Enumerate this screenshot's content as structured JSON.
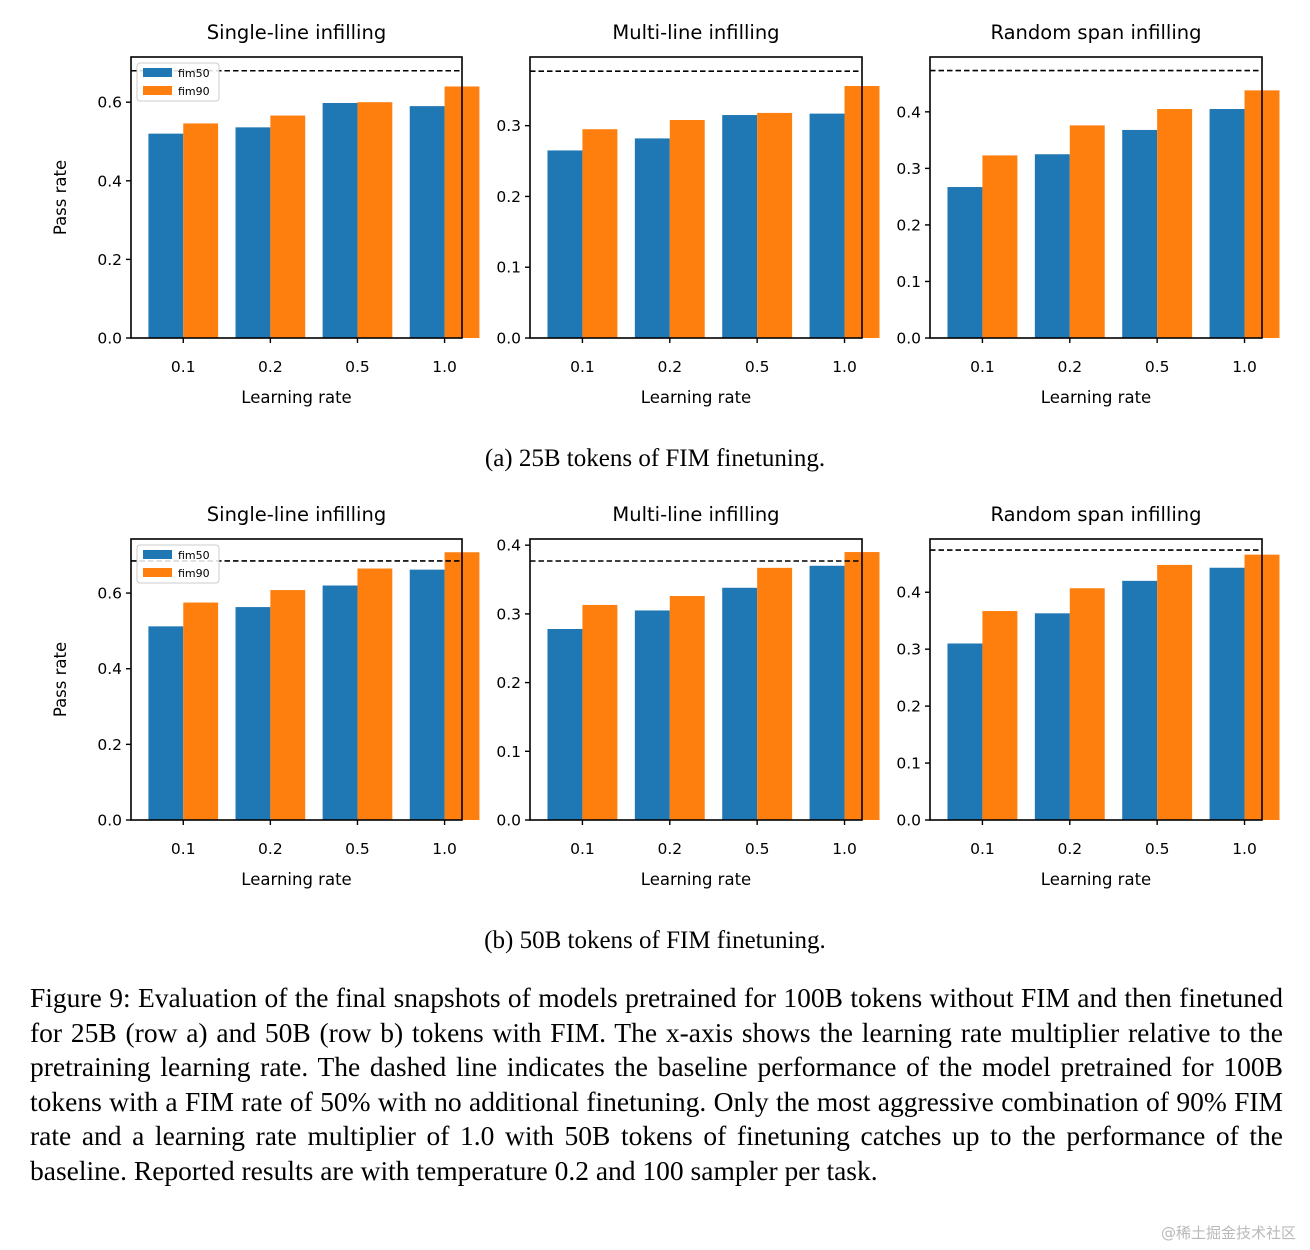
{
  "colors": {
    "fim50": "#1f77b4",
    "fim90": "#ff7f0e",
    "baseline": "#000000"
  },
  "figure": {
    "subcaption_a": "(a) 25B tokens of FIM finetuning.",
    "subcaption_b": "(b) 50B tokens of FIM finetuning.",
    "caption": "Figure 9: Evaluation of the final snapshots of models pretrained for 100B tokens without FIM and then finetuned for 25B (row a) and 50B (row b) tokens with FIM. The x-axis shows the learning rate multiplier relative to the pretraining learning rate. The dashed line indicates the baseline performance of the model pretrained for 100B tokens with a FIM rate of 50% with no additional finetuning. Only the most aggressive combination of 90% FIM rate and a learning rate multiplier of 1.0 with 50B tokens of finetuning catches up to the performance of the baseline. Reported results are with temperature 0.2 and 100 sampler per task.",
    "watermark": "@稀土掘金技术社区"
  },
  "chart_data": [
    {
      "type": "bar",
      "row": "a",
      "title": "Single-line infilling",
      "xlabel": "Learning rate",
      "ylabel": "Pass rate",
      "categories": [
        "0.1",
        "0.2",
        "0.5",
        "1.0"
      ],
      "series": [
        {
          "name": "fim50",
          "values": [
            0.52,
            0.536,
            0.598,
            0.59
          ]
        },
        {
          "name": "fim90",
          "values": [
            0.546,
            0.566,
            0.6,
            0.64
          ]
        }
      ],
      "baseline": 0.68,
      "ylim": [
        0,
        0.715
      ],
      "yticks": [
        0.0,
        0.2,
        0.4,
        0.6
      ],
      "yticklabels": [
        "0.0",
        "0.2",
        "0.4",
        "0.6"
      ],
      "legend": "top-left"
    },
    {
      "type": "bar",
      "row": "a",
      "title": "Multi-line infilling",
      "xlabel": "Learning rate",
      "ylabel": "",
      "categories": [
        "0.1",
        "0.2",
        "0.5",
        "1.0"
      ],
      "series": [
        {
          "name": "fim50",
          "values": [
            0.265,
            0.282,
            0.315,
            0.317
          ]
        },
        {
          "name": "fim90",
          "values": [
            0.295,
            0.308,
            0.318,
            0.356
          ]
        }
      ],
      "baseline": 0.377,
      "ylim": [
        0,
        0.397
      ],
      "yticks": [
        0.0,
        0.1,
        0.2,
        0.3
      ],
      "yticklabels": [
        "0.0",
        "0.1",
        "0.2",
        "0.3"
      ]
    },
    {
      "type": "bar",
      "row": "a",
      "title": "Random span infilling",
      "xlabel": "Learning rate",
      "ylabel": "",
      "categories": [
        "0.1",
        "0.2",
        "0.5",
        "1.0"
      ],
      "series": [
        {
          "name": "fim50",
          "values": [
            0.267,
            0.325,
            0.368,
            0.405
          ]
        },
        {
          "name": "fim90",
          "values": [
            0.323,
            0.376,
            0.405,
            0.438
          ]
        }
      ],
      "baseline": 0.473,
      "ylim": [
        0,
        0.497
      ],
      "yticks": [
        0.0,
        0.1,
        0.2,
        0.3,
        0.4
      ],
      "yticklabels": [
        "0.0",
        "0.1",
        "0.2",
        "0.3",
        "0.4"
      ]
    },
    {
      "type": "bar",
      "row": "b",
      "title": "Single-line infilling",
      "xlabel": "Learning rate",
      "ylabel": "Pass rate",
      "categories": [
        "0.1",
        "0.2",
        "0.5",
        "1.0"
      ],
      "series": [
        {
          "name": "fim50",
          "values": [
            0.512,
            0.563,
            0.62,
            0.662
          ]
        },
        {
          "name": "fim90",
          "values": [
            0.575,
            0.608,
            0.665,
            0.708
          ]
        }
      ],
      "baseline": 0.685,
      "ylim": [
        0,
        0.743
      ],
      "yticks": [
        0.0,
        0.2,
        0.4,
        0.6
      ],
      "yticklabels": [
        "0.0",
        "0.2",
        "0.4",
        "0.6"
      ],
      "legend": "top-left"
    },
    {
      "type": "bar",
      "row": "b",
      "title": "Multi-line infilling",
      "xlabel": "Learning rate",
      "ylabel": "",
      "categories": [
        "0.1",
        "0.2",
        "0.5",
        "1.0"
      ],
      "series": [
        {
          "name": "fim50",
          "values": [
            0.278,
            0.305,
            0.338,
            0.37
          ]
        },
        {
          "name": "fim90",
          "values": [
            0.313,
            0.326,
            0.367,
            0.39
          ]
        }
      ],
      "baseline": 0.377,
      "ylim": [
        0,
        0.409
      ],
      "yticks": [
        0.0,
        0.1,
        0.2,
        0.3,
        0.4
      ],
      "yticklabels": [
        "0.0",
        "0.1",
        "0.2",
        "0.3",
        "0.4"
      ]
    },
    {
      "type": "bar",
      "row": "b",
      "title": "Random span infilling",
      "xlabel": "Learning rate",
      "ylabel": "",
      "categories": [
        "0.1",
        "0.2",
        "0.5",
        "1.0"
      ],
      "series": [
        {
          "name": "fim50",
          "values": [
            0.31,
            0.363,
            0.42,
            0.443
          ]
        },
        {
          "name": "fim90",
          "values": [
            0.367,
            0.407,
            0.448,
            0.466
          ]
        }
      ],
      "baseline": 0.474,
      "ylim": [
        0,
        0.4935
      ],
      "yticks": [
        0.0,
        0.1,
        0.2,
        0.3,
        0.4
      ],
      "yticklabels": [
        "0.0",
        "0.1",
        "0.2",
        "0.3",
        "0.4"
      ]
    }
  ]
}
